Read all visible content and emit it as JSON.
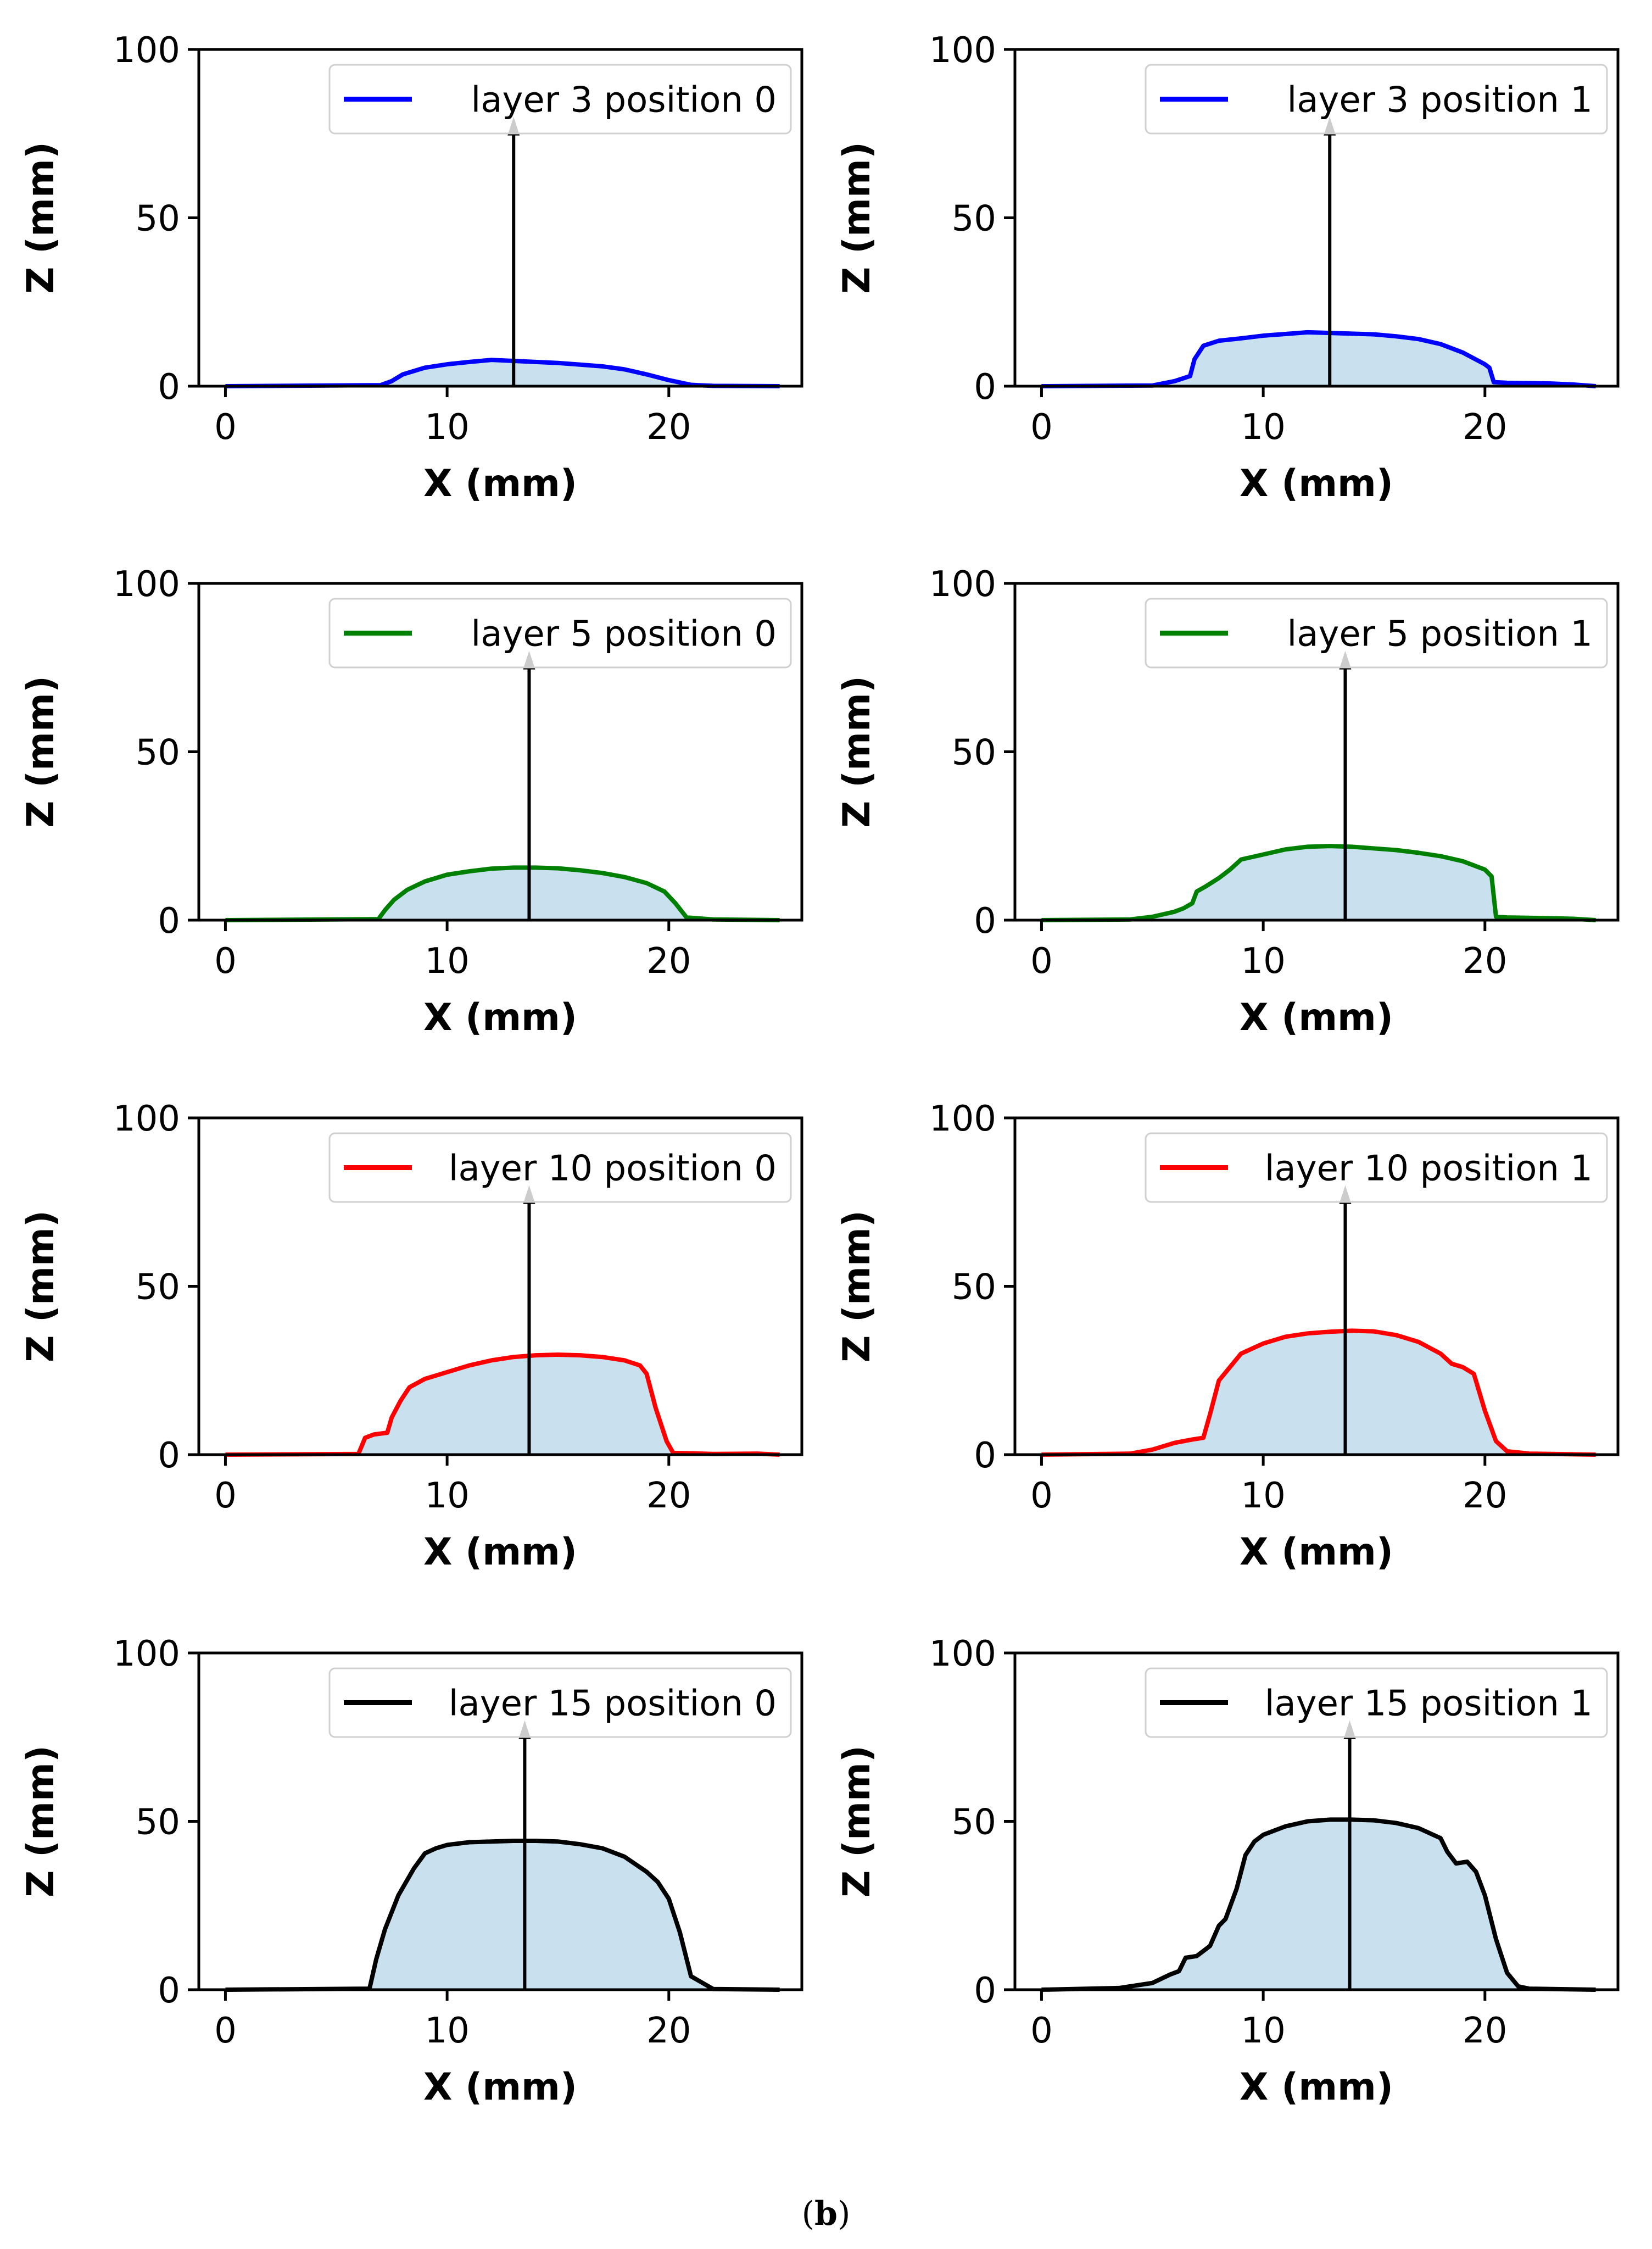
{
  "caption": {
    "open": "(",
    "letter": "b",
    "close": ")"
  },
  "colors": {
    "fill": "#c9e0ef",
    "arrow": "#000000",
    "axis": "#000000"
  },
  "chart_data": [
    {
      "type": "area",
      "xlabel": "X (mm)",
      "ylabel": "Z (mm)",
      "xlim": [
        -1.2,
        26
      ],
      "ylim": [
        0,
        100
      ],
      "xticks": [
        0,
        10,
        20
      ],
      "yticks": [
        0,
        50,
        100
      ],
      "legend_position": "top-right",
      "arrow": {
        "x": 13.0,
        "y_start": 0,
        "y_end": 80
      },
      "series": [
        {
          "name": "layer 3 position 0",
          "color": "#0000ff",
          "x": [
            0,
            7,
            7.5,
            8,
            9,
            10,
            11,
            12,
            13,
            14,
            15,
            16,
            17,
            18,
            19,
            20,
            21,
            22,
            25
          ],
          "y": [
            0,
            0.3,
            1.5,
            3.5,
            5.5,
            6.5,
            7.2,
            7.8,
            7.5,
            7.2,
            6.9,
            6.4,
            5.9,
            5,
            3.5,
            1.8,
            0.4,
            0.1,
            0
          ]
        }
      ]
    },
    {
      "type": "area",
      "xlabel": "X (mm)",
      "ylabel": "Z (mm)",
      "xlim": [
        -1.2,
        26
      ],
      "ylim": [
        0,
        100
      ],
      "xticks": [
        0,
        10,
        20
      ],
      "yticks": [
        0,
        50,
        100
      ],
      "legend_position": "top-right",
      "arrow": {
        "x": 13.0,
        "y_start": 0,
        "y_end": 80
      },
      "series": [
        {
          "name": "layer 3 position 1",
          "color": "#0000ff",
          "x": [
            0,
            5,
            6,
            6.7,
            6.9,
            7.3,
            8,
            9,
            10,
            11,
            12,
            13,
            14,
            15,
            16,
            17,
            18,
            19,
            20,
            20.2,
            20.4,
            21,
            23,
            24,
            25
          ],
          "y": [
            0,
            0.2,
            1.5,
            3,
            8,
            12,
            13.5,
            14.2,
            15,
            15.5,
            16,
            15.8,
            15.6,
            15.4,
            14.8,
            14,
            12.5,
            10,
            6.5,
            5.5,
            1.2,
            1,
            0.8,
            0.5,
            0
          ]
        }
      ]
    },
    {
      "type": "area",
      "xlabel": "X (mm)",
      "ylabel": "Z (mm)",
      "xlim": [
        -1.2,
        26
      ],
      "ylim": [
        0,
        100
      ],
      "xticks": [
        0,
        10,
        20
      ],
      "yticks": [
        0,
        50,
        100
      ],
      "legend_position": "top-right",
      "arrow": {
        "x": 13.7,
        "y_start": 0,
        "y_end": 80
      },
      "series": [
        {
          "name": "layer 5 position 0",
          "color": "#008000",
          "x": [
            0,
            6.9,
            7.2,
            7.6,
            8.2,
            9,
            10,
            11,
            12,
            13,
            14,
            15,
            16,
            17,
            18,
            19,
            19.8,
            20.3,
            20.8,
            22,
            25
          ],
          "y": [
            0,
            0.3,
            3,
            6,
            9,
            11.5,
            13.5,
            14.5,
            15.3,
            15.6,
            15.6,
            15.4,
            14.8,
            14,
            12.8,
            11,
            8.5,
            5,
            0.8,
            0.2,
            0
          ]
        }
      ]
    },
    {
      "type": "area",
      "xlabel": "X (mm)",
      "ylabel": "Z (mm)",
      "xlim": [
        -1.2,
        26
      ],
      "ylim": [
        0,
        100
      ],
      "xticks": [
        0,
        10,
        20
      ],
      "yticks": [
        0,
        50,
        100
      ],
      "legend_position": "top-right",
      "arrow": {
        "x": 13.7,
        "y_start": 0,
        "y_end": 80
      },
      "series": [
        {
          "name": "layer 5 position 1",
          "color": "#008000",
          "x": [
            0,
            4,
            5,
            6,
            6.4,
            6.8,
            7,
            7.4,
            8,
            8.5,
            9,
            10,
            11,
            12,
            13,
            14,
            15,
            16,
            17,
            18,
            19,
            20,
            20.3,
            20.5,
            21,
            22,
            24,
            25
          ],
          "y": [
            0,
            0.2,
            1,
            2.5,
            3.5,
            5,
            8.5,
            10,
            12.5,
            15,
            18,
            19.5,
            21,
            21.8,
            22,
            21.8,
            21.3,
            20.8,
            20,
            19,
            17.5,
            15,
            13,
            1,
            0.8,
            0.7,
            0.4,
            0
          ]
        }
      ]
    },
    {
      "type": "area",
      "xlabel": "X (mm)",
      "ylabel": "Z (mm)",
      "xlim": [
        -1.2,
        26
      ],
      "ylim": [
        0,
        100
      ],
      "xticks": [
        0,
        10,
        20
      ],
      "yticks": [
        0,
        50,
        100
      ],
      "legend_position": "top-right",
      "arrow": {
        "x": 13.7,
        "y_start": 0,
        "y_end": 80
      },
      "series": [
        {
          "name": "layer 10 position 0",
          "color": "#ff0000",
          "x": [
            0,
            6,
            6.3,
            6.7,
            7.3,
            7.5,
            7.9,
            8.3,
            9,
            10,
            11,
            12,
            13,
            14,
            15,
            16,
            17,
            18,
            18.7,
            19,
            19.4,
            19.9,
            20.2,
            21,
            22,
            24,
            25
          ],
          "y": [
            0,
            0.2,
            5,
            6,
            6.5,
            11,
            16,
            20,
            22.5,
            24.5,
            26.5,
            28,
            29,
            29.5,
            29.7,
            29.5,
            29,
            28,
            26.5,
            24,
            14,
            4,
            0.5,
            0.4,
            0.2,
            0.3,
            0
          ]
        }
      ]
    },
    {
      "type": "area",
      "xlabel": "X (mm)",
      "ylabel": "Z (mm)",
      "xlim": [
        -1.2,
        26
      ],
      "ylim": [
        0,
        100
      ],
      "xticks": [
        0,
        10,
        20
      ],
      "yticks": [
        0,
        50,
        100
      ],
      "legend_position": "top-right",
      "arrow": {
        "x": 13.7,
        "y_start": 0,
        "y_end": 80
      },
      "series": [
        {
          "name": "layer 10 position 1",
          "color": "#ff0000",
          "x": [
            0,
            4,
            5,
            6,
            6.8,
            7.3,
            7.6,
            8,
            8.5,
            9,
            10,
            11,
            12,
            13,
            14,
            15,
            16,
            17,
            18,
            18.5,
            19,
            19.5,
            20,
            20.5,
            21,
            22,
            25
          ],
          "y": [
            0,
            0.3,
            1.5,
            3.5,
            4.5,
            5,
            12,
            22,
            26,
            30,
            33,
            35,
            36,
            36.5,
            36.8,
            36.6,
            35.5,
            33.5,
            30,
            27,
            26,
            24,
            13,
            4,
            1,
            0.3,
            0
          ]
        }
      ]
    },
    {
      "type": "area",
      "xlabel": "X (mm)",
      "ylabel": "Z (mm)",
      "xlim": [
        -1.2,
        26
      ],
      "ylim": [
        0,
        100
      ],
      "xticks": [
        0,
        10,
        20
      ],
      "yticks": [
        0,
        50,
        100
      ],
      "legend_position": "top-right",
      "arrow": {
        "x": 13.5,
        "y_start": 0,
        "y_end": 80
      },
      "series": [
        {
          "name": "layer 15 position 0",
          "color": "#000000",
          "x": [
            0,
            6.5,
            6.8,
            7.2,
            7.8,
            8.5,
            9,
            9.5,
            10,
            11,
            12,
            13,
            14,
            15,
            16,
            17,
            18,
            19,
            19.5,
            20,
            20.5,
            21,
            22,
            25
          ],
          "y": [
            0,
            0.3,
            9,
            18,
            28,
            36,
            40.5,
            42,
            43,
            43.8,
            44,
            44.2,
            44.2,
            44,
            43.2,
            42,
            39.5,
            35,
            32,
            27,
            17,
            4,
            0.2,
            0
          ]
        }
      ]
    },
    {
      "type": "area",
      "xlabel": "X (mm)",
      "ylabel": "Z (mm)",
      "xlim": [
        -1.2,
        26
      ],
      "ylim": [
        0,
        100
      ],
      "xticks": [
        0,
        10,
        20
      ],
      "yticks": [
        0,
        50,
        100
      ],
      "legend_position": "top-right",
      "arrow": {
        "x": 13.9,
        "y_start": 0,
        "y_end": 80
      },
      "series": [
        {
          "name": "layer 15 position 1",
          "color": "#000000",
          "x": [
            0,
            3.5,
            5,
            5.8,
            6.2,
            6.5,
            7,
            7.6,
            8,
            8.3,
            8.8,
            9.2,
            9.6,
            10,
            11,
            12,
            13,
            14,
            15,
            16,
            17,
            18,
            18.3,
            18.7,
            19.2,
            19.6,
            20,
            20.5,
            21,
            21.5,
            22,
            25
          ],
          "y": [
            0,
            0.5,
            2,
            4.5,
            5.5,
            9.5,
            10,
            13,
            19,
            21,
            30,
            40,
            44,
            46,
            48.5,
            50,
            50.5,
            50.5,
            50.3,
            49.5,
            48,
            45,
            41,
            37.5,
            38,
            35,
            28,
            15,
            5,
            1,
            0.3,
            0
          ]
        }
      ]
    }
  ]
}
